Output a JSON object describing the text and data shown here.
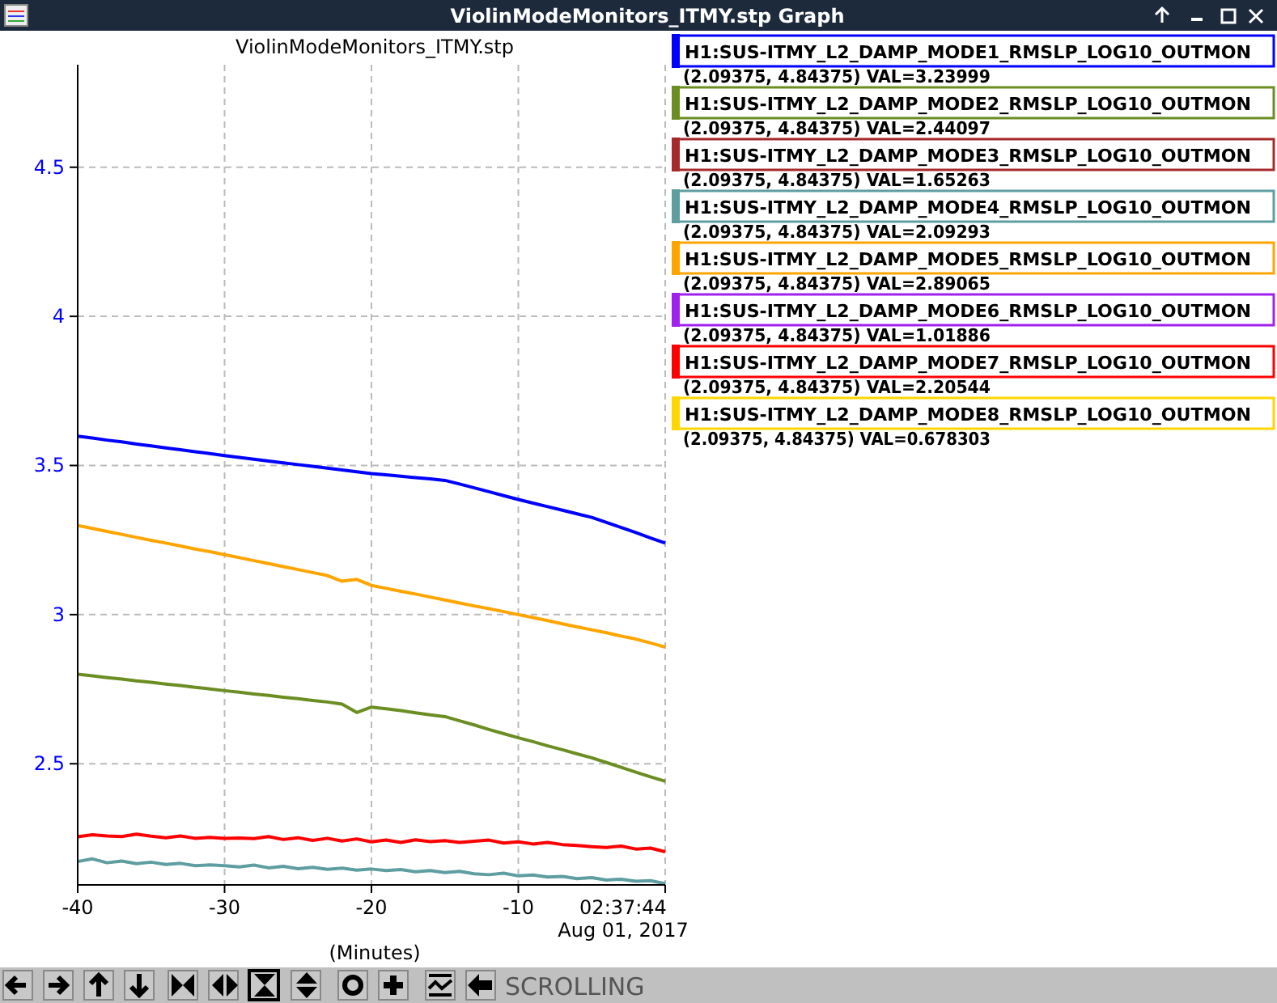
{
  "chart_data": {
    "type": "line",
    "title": "ViolinModeMonitors_ITMY.stp",
    "xlabel": "(Minutes)",
    "x": [
      -40,
      -39,
      -38,
      -37,
      -36,
      -35,
      -34,
      -33,
      -32,
      -31,
      -30,
      -29,
      -28,
      -27,
      -26,
      -25,
      -24,
      -23,
      -22,
      -21,
      -20,
      -19,
      -18,
      -17,
      -16,
      -15,
      -14,
      -13,
      -12,
      -11,
      -10,
      -9,
      -8,
      -7,
      -6,
      -5,
      -4,
      -3,
      -2,
      -1,
      0
    ],
    "xlim": [
      -40,
      0
    ],
    "xticks": [
      -40,
      -30,
      -20,
      -10,
      {
        "value": 0,
        "label": "02:37:44\nAug 01, 2017"
      }
    ],
    "ylim": [
      2.09375,
      4.84375
    ],
    "yticks": [
      2.5,
      3,
      3.5,
      4,
      4.5
    ],
    "grid": true,
    "legend": "right",
    "line_style": "solid",
    "marker": "none",
    "series": [
      {
        "name": "H1:SUS-ITMY_L2_DAMP_MODE1_RMSLP_LOG10_OUTMON",
        "color": "#0000ff",
        "values": [
          3.598,
          3.592,
          3.585,
          3.579,
          3.572,
          3.566,
          3.559,
          3.553,
          3.546,
          3.54,
          3.533,
          3.527,
          3.521,
          3.515,
          3.509,
          3.503,
          3.497,
          3.491,
          3.485,
          3.479,
          3.473,
          3.469,
          3.464,
          3.459,
          3.455,
          3.45,
          3.438,
          3.425,
          3.412,
          3.399,
          3.386,
          3.374,
          3.362,
          3.35,
          3.338,
          3.326,
          3.309,
          3.292,
          3.275,
          3.257,
          3.24
        ]
      },
      {
        "name": "H1:SUS-ITMY_L2_DAMP_MODE2_RMSLP_LOG10_OUTMON",
        "color": "#6b8e23",
        "values": [
          2.8,
          2.795,
          2.789,
          2.784,
          2.778,
          2.773,
          2.767,
          2.762,
          2.756,
          2.751,
          2.745,
          2.74,
          2.734,
          2.729,
          2.723,
          2.718,
          2.712,
          2.707,
          2.7,
          2.672,
          2.69,
          2.684,
          2.678,
          2.671,
          2.664,
          2.658,
          2.644,
          2.63,
          2.615,
          2.601,
          2.587,
          2.574,
          2.56,
          2.547,
          2.533,
          2.52,
          2.504,
          2.488,
          2.472,
          2.456,
          2.441
        ]
      },
      {
        "name": "H1:SUS-ITMY_L2_DAMP_MODE3_RMSLP_LOG10_OUTMON",
        "color": "#a52a2a",
        "values": [
          null,
          null,
          null,
          null,
          null,
          null,
          null,
          null,
          null,
          null,
          null,
          null,
          null,
          null,
          null,
          null,
          null,
          null,
          null,
          null,
          null,
          null,
          null,
          null,
          null,
          null,
          null,
          null,
          null,
          null,
          null,
          null,
          null,
          null,
          null,
          null,
          null,
          null,
          null,
          null,
          null
        ]
      },
      {
        "name": "H1:SUS-ITMY_L2_DAMP_MODE4_RMSLP_LOG10_OUTMON",
        "color": "#5f9ea0",
        "values": [
          2.172,
          2.181,
          2.168,
          2.174,
          2.165,
          2.17,
          2.162,
          2.166,
          2.158,
          2.161,
          2.158,
          2.154,
          2.16,
          2.151,
          2.156,
          2.148,
          2.153,
          2.146,
          2.15,
          2.143,
          2.147,
          2.142,
          2.145,
          2.138,
          2.142,
          2.135,
          2.139,
          2.131,
          2.128,
          2.133,
          2.124,
          2.127,
          2.12,
          2.122,
          2.115,
          2.118,
          2.11,
          2.113,
          2.106,
          2.108,
          2.098
        ]
      },
      {
        "name": "H1:SUS-ITMY_L2_DAMP_MODE5_RMSLP_LOG10_OUTMON",
        "color": "#ffa500",
        "values": [
          3.299,
          3.289,
          3.279,
          3.269,
          3.259,
          3.249,
          3.24,
          3.23,
          3.22,
          3.211,
          3.201,
          3.191,
          3.181,
          3.171,
          3.161,
          3.151,
          3.141,
          3.131,
          3.112,
          3.118,
          3.098,
          3.088,
          3.078,
          3.069,
          3.059,
          3.049,
          3.039,
          3.029,
          3.02,
          3.01,
          3.0,
          2.99,
          2.98,
          2.969,
          2.959,
          2.949,
          2.939,
          2.928,
          2.918,
          2.905,
          2.891
        ]
      },
      {
        "name": "H1:SUS-ITMY_L2_DAMP_MODE6_RMSLP_LOG10_OUTMON",
        "color": "#a020f0",
        "values": [
          null,
          null,
          null,
          null,
          null,
          null,
          null,
          null,
          null,
          null,
          null,
          null,
          null,
          null,
          null,
          null,
          null,
          null,
          null,
          null,
          null,
          null,
          null,
          null,
          null,
          null,
          null,
          null,
          null,
          null,
          null,
          null,
          null,
          null,
          null,
          null,
          null,
          null,
          null,
          null,
          null
        ]
      },
      {
        "name": "H1:SUS-ITMY_L2_DAMP_MODE7_RMSLP_LOG10_OUTMON",
        "color": "#ff0000",
        "values": [
          2.255,
          2.262,
          2.258,
          2.256,
          2.264,
          2.257,
          2.252,
          2.258,
          2.25,
          2.253,
          2.25,
          2.251,
          2.249,
          2.256,
          2.246,
          2.252,
          2.243,
          2.25,
          2.241,
          2.248,
          2.238,
          2.244,
          2.236,
          2.245,
          2.239,
          2.242,
          2.236,
          2.24,
          2.244,
          2.234,
          2.238,
          2.231,
          2.236,
          2.229,
          2.226,
          2.222,
          2.219,
          2.224,
          2.214,
          2.217,
          2.205
        ]
      },
      {
        "name": "H1:SUS-ITMY_L2_DAMP_MODE8_RMSLP_LOG10_OUTMON",
        "color": "#ffd700",
        "values": [
          null,
          null,
          null,
          null,
          null,
          null,
          null,
          null,
          null,
          null,
          null,
          null,
          null,
          null,
          null,
          null,
          null,
          null,
          null,
          null,
          null,
          null,
          null,
          null,
          null,
          null,
          null,
          null,
          null,
          null,
          null,
          null,
          null,
          null,
          null,
          null,
          null,
          null,
          null,
          null,
          null
        ]
      }
    ],
    "annotations": [
      "ViolinModeMonitors_ITMY.stp Graph",
      "SCROLLING",
      "(2.09375, 4.84375) VAL=3.23999",
      "(2.09375, 4.84375) VAL=2.44097",
      "(2.09375, 4.84375) VAL=1.65263",
      "(2.09375, 4.84375) VAL=2.09293",
      "(2.09375, 4.84375) VAL=2.89065",
      "(2.09375, 4.84375) VAL=1.01886",
      "(2.09375, 4.84375) VAL=2.20544",
      "(2.09375, 4.84375) VAL=0.678303"
    ]
  }
}
